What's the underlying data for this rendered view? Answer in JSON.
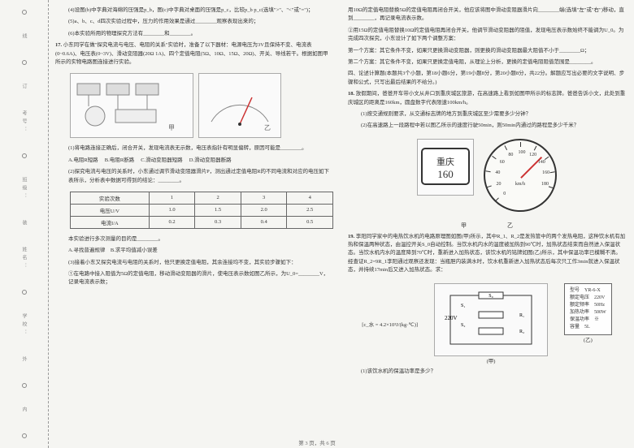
{
  "binding": {
    "labels": [
      "线",
      "订",
      "装",
      "外",
      "内"
    ],
    "fields": [
      "学校：",
      "姓名：",
      "班级：",
      "考号："
    ]
  },
  "colL": {
    "p4": "(4)设图(b)中字典对海绵的压强是p_b，图(c)中字典对桌面的压强是p_c，比较p_b p_c(选填\">\"、\"<\"或\"=\")；",
    "p5": "(5)a、b、c、d四次实验过程中，压力的作用效果是通过________观察表现出来的；",
    "p6": "(6)本实验所用的物理探究方法有________和________。",
    "q17": "17.",
    "q17t": "小东同学在做\"探究电流与电压、电阻的关系\"实验时，准备了以下器材：电源电压为3V且保持不变、电流表(0~0.6A)、电压表(0~3V)、滑动变阻器(20Ω 1A)、四个定值电阻(5Ω、10Ω、15Ω、20Ω)、开关、导线若干。根据如图甲所示的实物电路图连接进行实验。",
    "p17_1": "(1)将电路连接正确后，闭合开关，发现电流表无示数，电压表指针有明显偏转，原因可能是________。",
    "optA": "A.电阻R短路",
    "optB": "B.电阻R断路",
    "optC": "C.滑动变阻器短路",
    "optD": "D.滑动变阻器断路",
    "p17_2": "(2)探究电流与电压的关系时，小东通过调节滑动变阻器滑片P，测出通过定值电阻R的不同电流和对应的电压如下表所示，分析表中数据可得到的结论：________。",
    "tbl": {
      "h": [
        "实验次数",
        "1",
        "2",
        "3",
        "4"
      ],
      "r1": [
        "电压U/V",
        "1.0",
        "1.5",
        "2.0",
        "2.5"
      ],
      "r2": [
        "电流I/A",
        "0.2",
        "0.3",
        "0.4",
        "0.5"
      ]
    },
    "p17_2b": "本实验进行多次测量的目的是________。",
    "opt2": "A.寻找普遍规律　B.求平均值减小误差",
    "p17_3": "(3)接着小东又探究电流与电阻的关系时，他只更换定值电阻，其余连接均不变，其实验步骤如下：",
    "p17_3a": "①在电路中接入阻值为5Ω的定值电阻，移动滑动变阻器的滑片，使电压表示数如图乙所示，为U_0=________V，记录电流表示数；"
  },
  "colR": {
    "cont1": "用10Ω的定值电阻替换5Ω的定值电阻再闭合开关，他应该将图中滑动变阻器滑片向________端(选填\"左\"或\"右\")移动，直到________，再记录电流表示数。",
    "cont2": "②用15Ω的定值电阻替换10Ω的定值电阻再闭合开关，他调节滑动变阻器的阻值，发现电压表示数始终不能调为U_0。为完成四次探究，小东设计了如下两个调整方案：",
    "cont3": "第一个方案：其它条件不变，如果只更换滑动变阻器，则更换的滑动变阻器最大阻值不小于________Ω；",
    "cont4": "第二个方案：其它条件不变，如果只更换定值电阻，从理论上分析，更换的定值电阻阻值范围是________。",
    "sec4": "四、论述计算题(本题共3个小题，第18小题6分，第19小题8分，第20小题8分，共22分。解题应写出必要的文字说明、步骤和公式，只写出最后结果的不给分。)",
    "q18": "18.",
    "q18t": "放假期间，爸爸开车带小文从井口到重庆城区旅游，在高速路上看到如图甲所示的标志牌。爸爸告诉小文，此处到重庆城区的距离是160km，圆盘数字代表限速100km/h。",
    "q18_1": "(1)按交通规则要求，从交通标志牌的地方到重庆城区至少需要多少分钟？",
    "q18_2": "(2)在高速路上一段路程中若以图乙所示的速度行驶50min，则50min内通过的路程是多少千米？",
    "sign_lines": [
      "重庆",
      "160"
    ],
    "gauge_nums": [
      {
        "v": "0",
        "a": -135
      },
      {
        "v": "20",
        "a": -108
      },
      {
        "v": "40",
        "a": -81
      },
      {
        "v": "60",
        "a": -54
      },
      {
        "v": "80",
        "a": -27
      },
      {
        "v": "100",
        "a": 0
      },
      {
        "v": "120",
        "a": 27
      },
      {
        "v": "140",
        "a": 54
      },
      {
        "v": "160",
        "a": 81
      },
      {
        "v": "180",
        "a": 108
      }
    ],
    "gauge_unit": "km/h",
    "lbl_jia": "甲",
    "lbl_yi": "乙",
    "q19": "19.",
    "q19t": "李阳同学家中的电热饮水机的电路原理图如图(甲)所示，其中R_1、R_2是发热管中的两个发热电阻，这种饮水机有加热和保温两种状态，由温控开关S_0自动控制。当饮水机内水的温度被加热到90℃时，加热状态结束而自然进入保温状态。当饮水机内水的温度降到70℃时，重新进入加热状态，该饮水机的铭牌如图(乙)所示，其中保温功率已模糊不清。经查证R_2=9R_1李阳通过观察还发现：当瓶胆内装满水时，饮水机重新进入加热状态后每次只工作3min就进入保温状态，并持续17min后又进入加热状态。求：",
    "spec": {
      "h": "型号　YR-6-X",
      "r": [
        "额定电压　220V",
        "额定频率　50Hz",
        "加热功率　500W",
        "保温功率　※",
        "容量　5L"
      ]
    },
    "lbl_jia2": "(甲)",
    "lbl_yi2": "(乙)",
    "q19_eq": "[c_水 = 4.2×10³J/(kg·℃)]",
    "q19_1": "(1)该饮水机的保温功率是多少？"
  },
  "footer": "第 3 页，共 6 页"
}
